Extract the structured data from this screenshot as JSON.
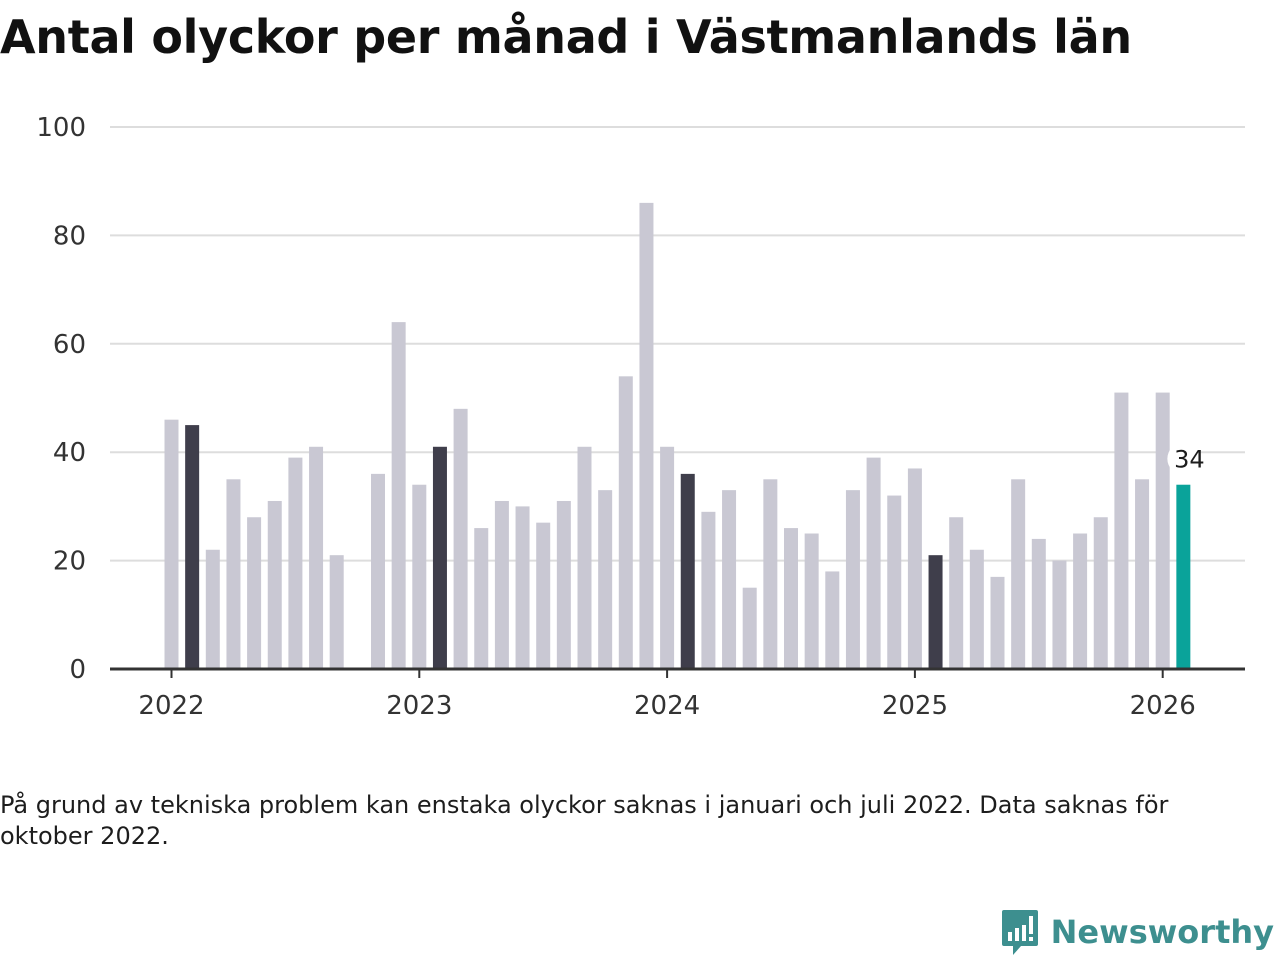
{
  "title": "Antal olyckor per månad i Västmanlands län",
  "note": "På grund av tekniska problem kan enstaka olyckor saknas i januari och juli 2022. Data saknas för oktober 2022.",
  "brand": {
    "name": "Newsworthy"
  },
  "colors": {
    "bar": "#c9c8d3",
    "january": "#3f3e4b",
    "latest": "#0aa39a",
    "grid": "#dddddd",
    "axis": "#333333",
    "brand": "#3d8f8f"
  },
  "chart_data": {
    "type": "bar",
    "title": "Antal olyckor per månad i Västmanlands län",
    "xlabel": "",
    "ylabel": "",
    "ylim": [
      0,
      100
    ],
    "y_ticks": [
      0,
      20,
      40,
      60,
      80,
      100
    ],
    "x_tick_labels": [
      "2022",
      "2023",
      "2024",
      "2025",
      "2026"
    ],
    "highlight_label": "34",
    "categories": [
      "2022-01",
      "2022-02",
      "2022-03",
      "2022-04",
      "2022-05",
      "2022-06",
      "2022-07",
      "2022-08",
      "2022-09",
      "2022-10",
      "2022-11",
      "2022-12",
      "2023-01",
      "2023-02",
      "2023-03",
      "2023-04",
      "2023-05",
      "2023-06",
      "2023-07",
      "2023-08",
      "2023-09",
      "2023-10",
      "2023-11",
      "2023-12",
      "2024-01",
      "2024-02",
      "2024-03",
      "2024-04",
      "2024-05",
      "2024-06",
      "2024-07",
      "2024-08",
      "2024-09",
      "2024-10",
      "2024-11",
      "2024-12",
      "2025-01",
      "2025-02",
      "2025-03",
      "2025-04",
      "2025-05",
      "2025-06",
      "2025-07",
      "2025-08",
      "2025-09",
      "2025-10",
      "2025-11",
      "2025-12",
      "2026-01",
      "2026-02"
    ],
    "values": [
      46,
      45,
      22,
      35,
      28,
      31,
      39,
      41,
      21,
      null,
      36,
      64,
      34,
      41,
      48,
      26,
      31,
      30,
      27,
      31,
      41,
      33,
      54,
      86,
      41,
      36,
      29,
      33,
      15,
      35,
      26,
      25,
      18,
      33,
      39,
      32,
      37,
      21,
      28,
      22,
      17,
      35,
      24,
      20,
      25,
      28,
      51,
      35,
      51,
      34
    ],
    "dark_bars": [
      "2022-02",
      "2023-02",
      "2024-02",
      "2025-02"
    ],
    "highlight_bar": "2026-02"
  }
}
